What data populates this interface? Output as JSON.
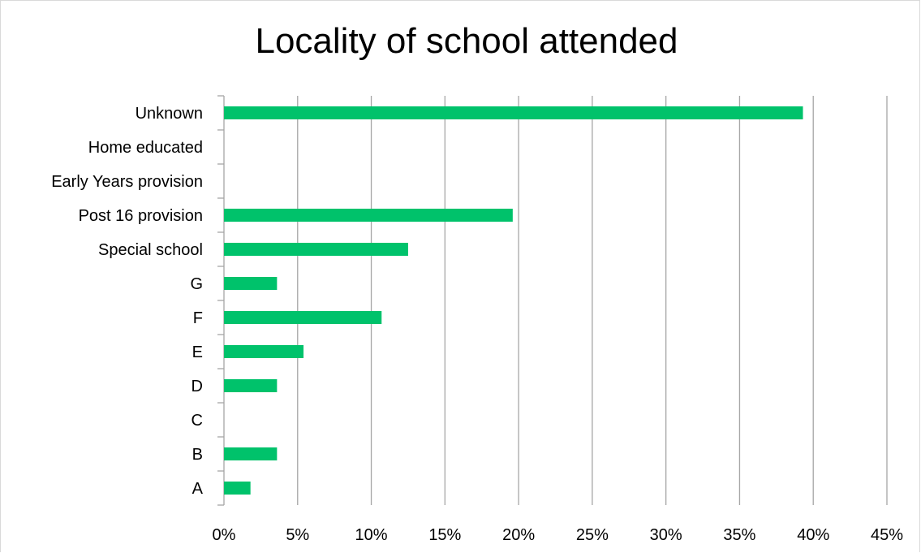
{
  "chart_data": {
    "type": "bar",
    "orientation": "horizontal",
    "title": "Locality of school attended",
    "xlabel": "",
    "ylabel": "",
    "categories": [
      "Unknown",
      "Home educated",
      "Early Years provision",
      "Post 16 provision",
      "Special school",
      "G",
      "F",
      "E",
      "D",
      "C",
      "B",
      "A"
    ],
    "values": [
      39.3,
      0,
      0,
      19.6,
      12.5,
      3.6,
      10.7,
      5.4,
      3.6,
      0,
      3.6,
      1.8
    ],
    "xlim": [
      0,
      45
    ],
    "xticks": [
      0,
      5,
      10,
      15,
      20,
      25,
      30,
      35,
      40,
      45
    ],
    "x_tick_labels": [
      "0%",
      "5%",
      "10%",
      "15%",
      "20%",
      "25%",
      "30%",
      "35%",
      "40%",
      "45%"
    ],
    "grid": "vertical",
    "legend": "none",
    "bar_color": "#00c26b"
  }
}
